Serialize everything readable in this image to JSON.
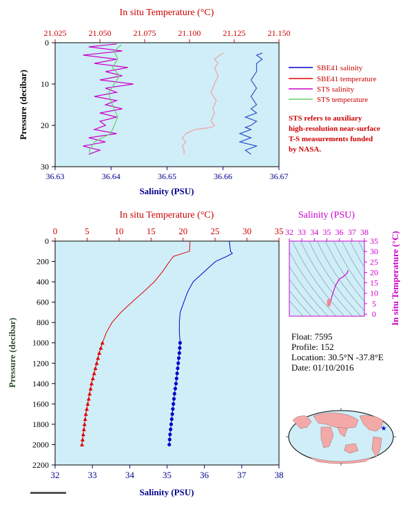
{
  "colors": {
    "plot_bg": "#cfeef8",
    "temperature": "#e00000",
    "salinity": "#0000cc",
    "sts_salinity": "#cc00cc",
    "sts_temperature": "#66cc66",
    "shallow_temp": "#f4a0a0",
    "shallow_sal": "#3355cc"
  },
  "chart_data": [
    {
      "type": "line",
      "panel": "near-surface",
      "x_top_label": "In situ Temperature (°C)",
      "x_top_ticks": [
        "21.025",
        "21.050",
        "21.075",
        "21.100",
        "21.125",
        "21.150"
      ],
      "x_top_range": [
        21.025,
        21.15
      ],
      "x_bottom_label": "Salinity (PSU)",
      "x_bottom_ticks": [
        "36.63",
        "36.64",
        "36.65",
        "36.66",
        "36.67"
      ],
      "x_bottom_range": [
        36.63,
        36.67
      ],
      "y_label": "Pressure (decibar)",
      "y_ticks": [
        "0",
        "10",
        "20",
        "30"
      ],
      "y_range": [
        0,
        30
      ],
      "legend": {
        "placement": "right",
        "items": [
          {
            "label": "SBE41 salinity",
            "color": "#0000cc"
          },
          {
            "label": "SBE41 temperature",
            "color": "#e00000"
          },
          {
            "label": "STS salinity",
            "color": "#cc00cc"
          },
          {
            "label": "STS temperature",
            "color": "#66cc66"
          }
        ]
      },
      "note_lines": [
        "STS refers to auxiliary",
        "high-resolution near-surface",
        "T-S measurements funded",
        "by NASA."
      ],
      "series": [
        {
          "name": "SBE41 temperature",
          "axis": "temperature",
          "p": [
            2.5,
            3,
            4,
            5,
            6,
            8,
            10,
            12,
            14,
            15,
            16,
            17,
            18,
            19,
            20,
            20.5,
            21,
            22,
            23,
            24,
            25,
            26,
            27
          ],
          "v": [
            21.119,
            21.117,
            21.114,
            21.116,
            21.114,
            21.116,
            21.114,
            21.112,
            21.115,
            21.114,
            21.113,
            21.114,
            21.113,
            21.112,
            21.114,
            21.112,
            21.103,
            21.098,
            21.096,
            21.098,
            21.096,
            21.097,
            21.097
          ]
        },
        {
          "name": "SBE41 salinity",
          "axis": "salinity",
          "p": [
            2.5,
            3,
            4,
            5,
            7,
            9,
            11,
            13,
            15,
            16,
            17,
            18,
            19,
            20,
            20.5,
            21,
            22,
            23,
            24,
            25,
            26,
            27
          ],
          "v": [
            36.667,
            36.666,
            36.667,
            36.666,
            36.666,
            36.665,
            36.666,
            36.665,
            36.666,
            36.665,
            36.666,
            36.664,
            36.666,
            36.665,
            36.664,
            36.665,
            36.663,
            36.665,
            36.663,
            36.666,
            36.664,
            36.665
          ]
        },
        {
          "name": "STS salinity",
          "axis": "salinity",
          "p": [
            0.3,
            1,
            2,
            3,
            4,
            5,
            6,
            7,
            8,
            9,
            10,
            11,
            12,
            13,
            14,
            15,
            16,
            17,
            18,
            19,
            20,
            21,
            22,
            23,
            24,
            25,
            26,
            27
          ],
          "v": [
            36.641,
            36.636,
            36.642,
            36.635,
            36.641,
            36.637,
            36.643,
            36.639,
            36.642,
            36.638,
            36.644,
            36.639,
            36.641,
            36.637,
            36.641,
            36.639,
            36.642,
            36.638,
            36.641,
            36.638,
            36.639,
            36.637,
            36.641,
            36.636,
            36.639,
            36.635,
            36.638,
            36.636
          ]
        },
        {
          "name": "STS temperature",
          "axis": "temperature",
          "p": [
            0.5,
            2,
            4,
            6,
            8,
            10,
            12,
            14,
            16,
            18,
            20,
            22,
            24,
            26,
            27
          ],
          "v": [
            21.062,
            21.058,
            21.06,
            21.057,
            21.061,
            21.058,
            21.055,
            21.056,
            21.058,
            21.06,
            21.058,
            21.056,
            21.047,
            21.044,
            21.045
          ]
        }
      ]
    },
    {
      "type": "line",
      "panel": "full-profile",
      "x_top_label": "In situ Temperature (°C)",
      "x_top_ticks": [
        "0",
        "5",
        "10",
        "15",
        "20",
        "25",
        "30",
        "35"
      ],
      "x_top_range": [
        0,
        35
      ],
      "x_bottom_label": "Salinity (PSU)",
      "x_bottom_ticks": [
        "32",
        "33",
        "34",
        "35",
        "36",
        "37",
        "38"
      ],
      "x_bottom_range": [
        32,
        38
      ],
      "y_label": "Pressure (decibar)",
      "y_ticks": [
        "0",
        "200",
        "400",
        "600",
        "800",
        "1000",
        "1200",
        "1400",
        "1600",
        "1800",
        "2000",
        "2200"
      ],
      "y_range": [
        0,
        2200
      ],
      "series": [
        {
          "name": "Temperature",
          "axis": "temperature",
          "p": [
            0,
            100,
            150,
            200,
            300,
            400,
            500,
            600,
            700,
            800,
            900,
            1000,
            1100,
            1200,
            1300,
            1400,
            1500,
            1600,
            1700,
            1800,
            1900,
            2000
          ],
          "v": [
            21.1,
            21.0,
            18.5,
            17.9,
            16.8,
            15.5,
            13.8,
            12.0,
            10.3,
            8.9,
            8.0,
            7.4,
            6.9,
            6.5,
            6.1,
            5.7,
            5.4,
            5.1,
            4.8,
            4.6,
            4.4,
            4.2
          ],
          "marker_from": 1000,
          "marker": "triangle"
        },
        {
          "name": "Salinity",
          "axis": "salinity",
          "p": [
            0,
            100,
            120,
            150,
            200,
            300,
            400,
            500,
            600,
            700,
            800,
            900,
            1000,
            1100,
            1200,
            1300,
            1400,
            1500,
            1600,
            1700,
            1800,
            1900,
            2000
          ],
          "v": [
            36.67,
            36.7,
            36.75,
            36.6,
            36.3,
            36.0,
            35.7,
            35.55,
            35.45,
            35.35,
            35.33,
            35.33,
            35.35,
            35.33,
            35.3,
            35.27,
            35.24,
            35.2,
            35.17,
            35.14,
            35.11,
            35.08,
            35.06
          ],
          "marker_from": 1000,
          "marker": "circle"
        }
      ]
    },
    {
      "type": "line",
      "panel": "t-s-diagram",
      "x_top_label": "Salinity (PSU)",
      "x_top_ticks": [
        "32",
        "33",
        "34",
        "35",
        "36",
        "37",
        "38"
      ],
      "x_range": [
        32,
        38
      ],
      "y_label": "In situ Temperature (°C)",
      "y_ticks": [
        "0",
        "5",
        "10",
        "15",
        "20",
        "25",
        "30",
        "35"
      ],
      "y_range": [
        -1,
        35
      ],
      "series": [
        {
          "name": "T-S",
          "s": [
            35.06,
            35.14,
            35.24,
            35.33,
            35.35,
            35.45,
            35.7,
            36.0,
            36.3,
            36.6,
            36.7
          ],
          "t": [
            4.2,
            4.8,
            5.7,
            6.9,
            7.4,
            9.5,
            13.8,
            16.8,
            17.9,
            19.5,
            21.0
          ]
        }
      ]
    }
  ],
  "info": {
    "float": "Float:  7595",
    "profile": "Profile:  152",
    "location": "Location:  30.5°N  -37.8°E",
    "date": "Date:  01/10/2016"
  },
  "map": {
    "marker_lat": 30.5,
    "marker_lon": -37.8
  }
}
